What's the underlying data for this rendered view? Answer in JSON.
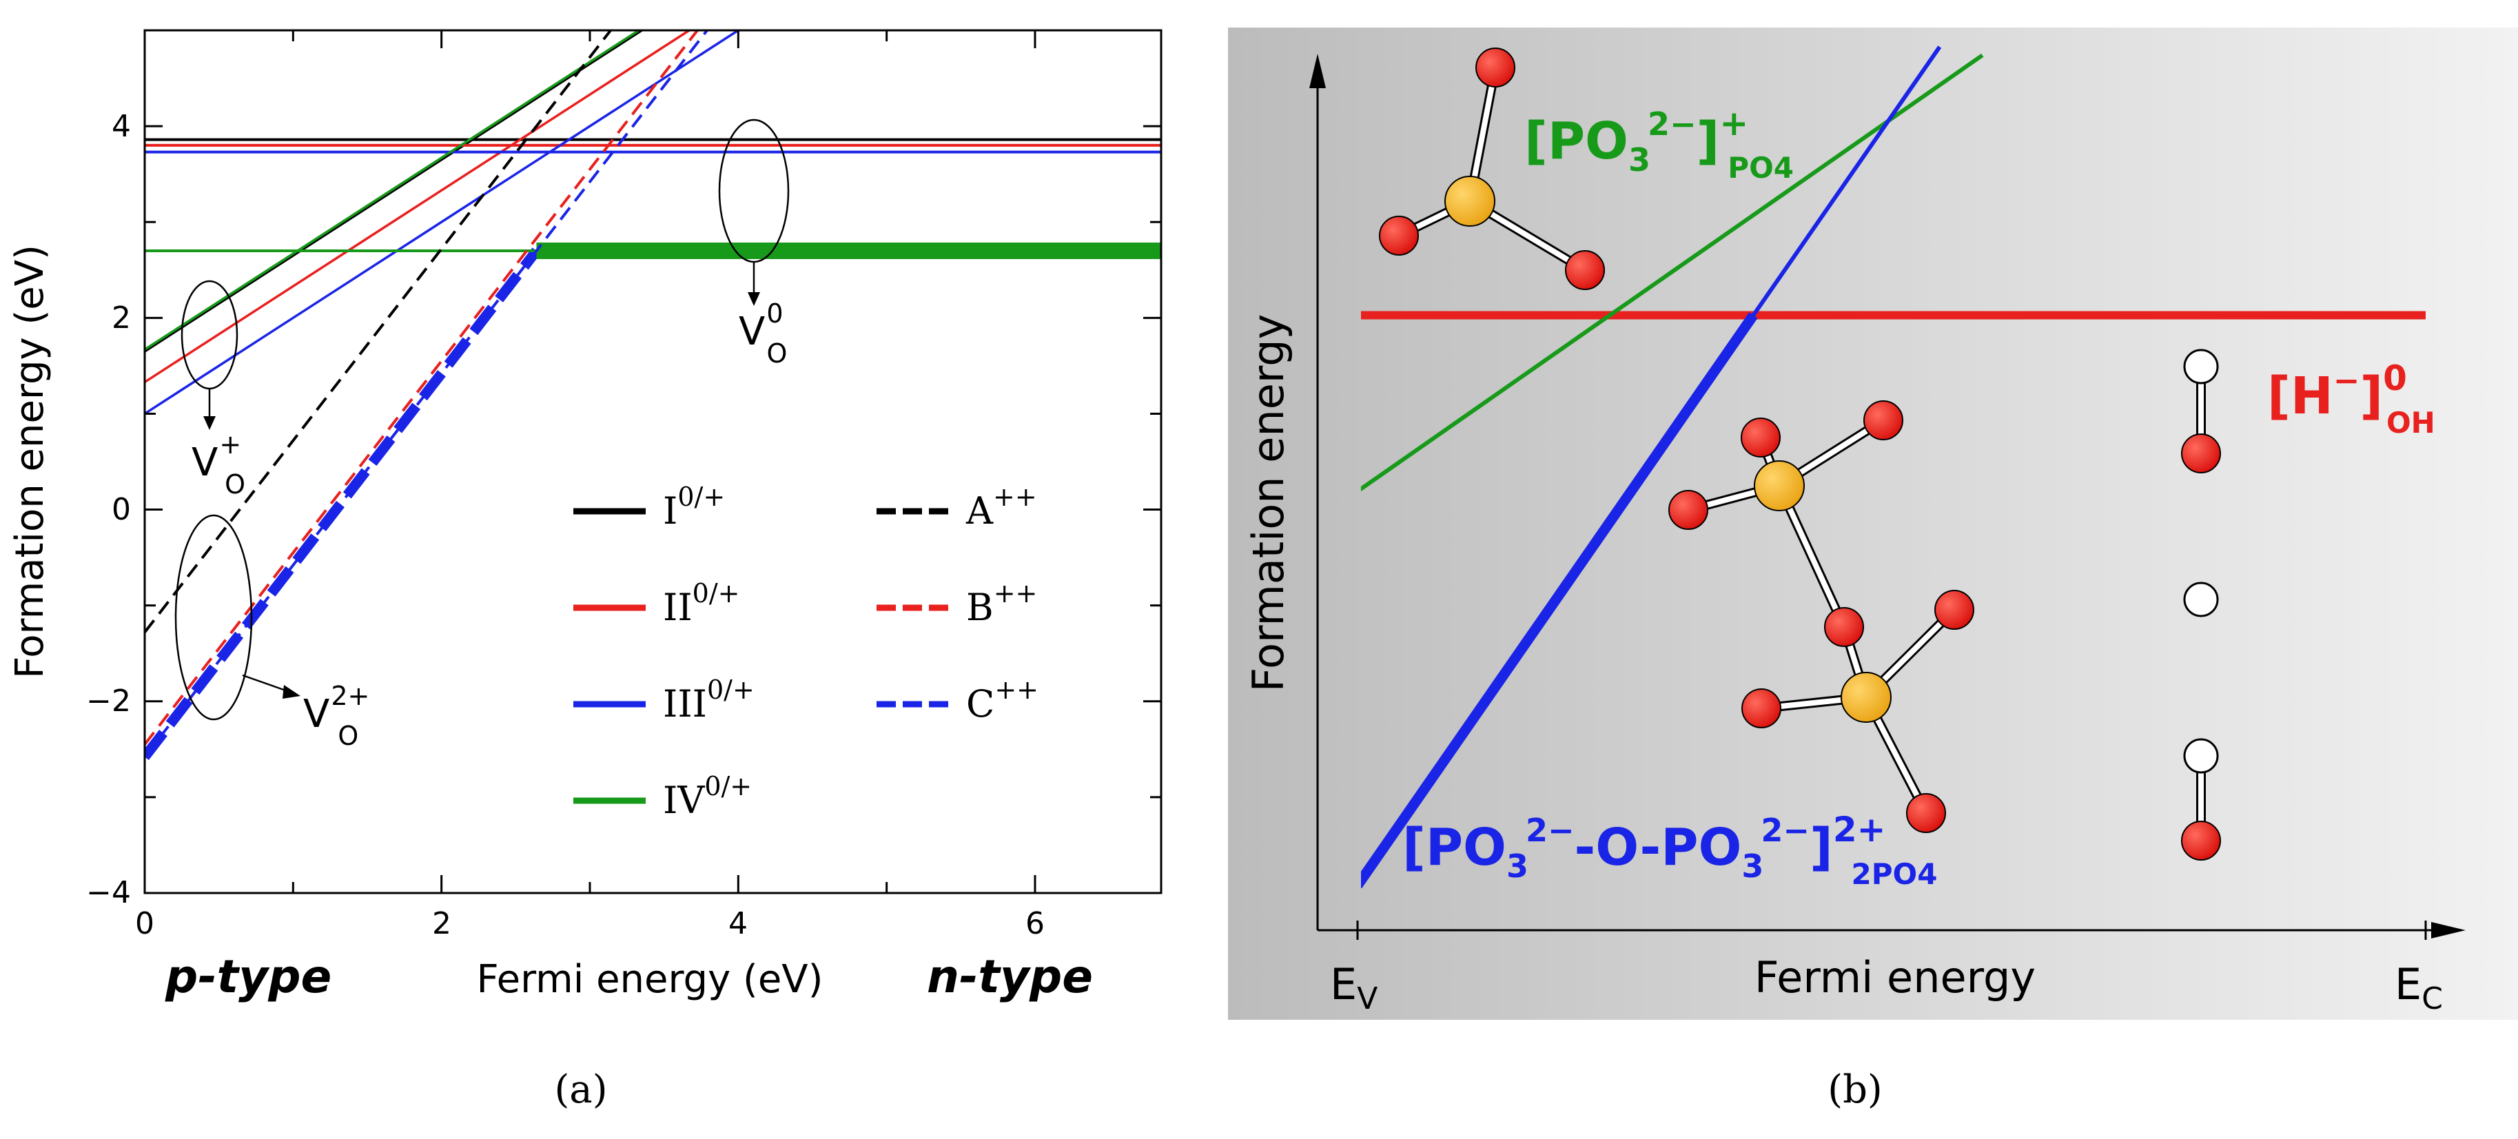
{
  "chart_data": [
    {
      "panel": "a",
      "type": "line",
      "xlabel": "Fermi energy (eV)",
      "ylabel": "Formation energy (eV)",
      "xlim": [
        0,
        6.85
      ],
      "ylim": [
        -4,
        5
      ],
      "xticks": [
        0,
        2,
        4,
        6
      ],
      "yticks": [
        -4,
        -2,
        0,
        2,
        4
      ],
      "xtick_labels": [
        "0",
        "2",
        "4",
        "6"
      ],
      "ytick_labels": [
        "−4",
        "−2",
        "0",
        "2",
        "4"
      ],
      "side_labels": {
        "left": "p-type",
        "right": "n-type"
      },
      "caption": "(a)",
      "colors": {
        "I": "#000000",
        "II": "#e8201e",
        "III": "#1a24e6",
        "IV": "#179a1a"
      },
      "series": [
        {
          "legend": "I",
          "sup": "0/+",
          "style": "solid",
          "color": "#000000",
          "flat": 3.86,
          "charged_intercept": 1.65,
          "slope": 1
        },
        {
          "legend": "II",
          "sup": "0/+",
          "style": "solid",
          "color": "#e8201e",
          "flat": 3.8,
          "charged_intercept": 1.33,
          "slope": 1
        },
        {
          "legend": "III",
          "sup": "0/+",
          "style": "solid",
          "color": "#1a24e6",
          "flat": 3.73,
          "charged_intercept": 1.0,
          "slope": 1
        },
        {
          "legend": "IV",
          "sup": "0/+",
          "style": "solid",
          "color": "#179a1a",
          "flat": 2.7,
          "charged_intercept": 1.67,
          "slope": 1
        },
        {
          "legend": "A",
          "sup": "++",
          "style": "dashed",
          "color": "#000000",
          "intercept": -1.28,
          "slope": 2
        },
        {
          "legend": "B",
          "sup": "++",
          "style": "dashed",
          "color": "#e8201e",
          "intercept": -2.45,
          "slope": 2
        },
        {
          "legend": "C",
          "sup": "++",
          "style": "dashed",
          "color": "#1a24e6",
          "intercept": -2.58,
          "slope": 2
        }
      ],
      "minimum_envelope": {
        "points": [
          [
            0,
            -2.58
          ],
          [
            2.64,
            2.7
          ],
          [
            6.85,
            2.7
          ]
        ],
        "note_colors": [
          "#1a24e6",
          "#179a1a"
        ]
      },
      "annotations": [
        {
          "base": "V",
          "sub": "O",
          "sup": "0"
        },
        {
          "base": "V",
          "sub": "O",
          "sup": "+"
        },
        {
          "base": "V",
          "sub": "O",
          "sup": "2+"
        }
      ]
    },
    {
      "panel": "b",
      "type": "line",
      "xlabel": "Fermi energy",
      "ylabel": "Formation energy",
      "x_ends": {
        "left": "E",
        "left_sub": "V",
        "right": "E",
        "right_sub": "C"
      },
      "caption": "(b)",
      "xlim": [
        0,
        1
      ],
      "ylim": [
        0,
        1
      ],
      "series": [
        {
          "id": "h_oh",
          "color": "#e8201e",
          "points": [
            [
              0,
              0.68
            ],
            [
              1,
              0.68
            ]
          ],
          "label": {
            "base": "[H",
            "sup_in": "−",
            "close": "]",
            "sup": "0",
            "sub": "OH"
          }
        },
        {
          "id": "po3_po4",
          "color": "#179a1a",
          "points": [
            [
              0,
              0.47
            ],
            [
              0.585,
              0.99
            ]
          ],
          "label": {
            "base": "[PO",
            "sub_in": "3",
            "sup_in": "2−",
            "close": "]",
            "sup": "+",
            "sub": "PO4"
          }
        },
        {
          "id": "po3_o_po3",
          "color": "#1a24e6",
          "points": [
            [
              0,
              0.0
            ],
            [
              0.545,
              1.0
            ]
          ],
          "label": {
            "base": "[PO",
            "sub_in": "3",
            "sup_in": "2−",
            "mid": "-O-PO",
            "sub_in2": "3",
            "sup_in2": "2−",
            "close": "]",
            "sup": "2+",
            "sub": "2PO4"
          }
        }
      ],
      "atom_colors": {
        "oxygen": "#e8201e",
        "phosphorus": "#f2b117",
        "hydrogen": "#ffffff"
      }
    }
  ]
}
